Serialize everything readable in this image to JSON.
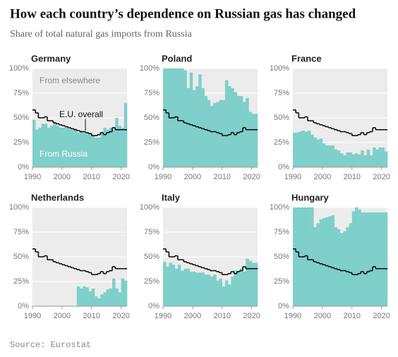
{
  "title": "How each country’s dependence on Russian gas has changed",
  "subtitle": "Share of total natural gas imports from Russia",
  "source": "Source: Eurostat",
  "chart_data": [
    {
      "type": "step-area",
      "title": "Germany",
      "x": [
        1990,
        1991,
        1992,
        1993,
        1994,
        1995,
        1996,
        1997,
        1998,
        1999,
        2000,
        2001,
        2002,
        2003,
        2004,
        2005,
        2006,
        2007,
        2008,
        2009,
        2010,
        2011,
        2012,
        2013,
        2014,
        2015,
        2016,
        2017,
        2018,
        2019,
        2020,
        2021
      ],
      "series": [
        {
          "color": "#7fcfcb",
          "values": [
            48,
            38,
            40,
            44,
            44,
            40,
            42,
            45,
            42,
            40,
            40,
            40,
            39,
            38,
            39,
            35,
            37,
            35,
            35,
            35,
            32,
            30,
            30,
            35,
            40,
            38,
            40,
            38,
            50,
            42,
            40,
            65
          ]
        },
        {
          "color": "#111111",
          "values": [
            58,
            55,
            50,
            50,
            51,
            47,
            47,
            45,
            44,
            43,
            42,
            41,
            40,
            39,
            38,
            37,
            36,
            36,
            35,
            34,
            32,
            32,
            33,
            35,
            33,
            35,
            36,
            40,
            38,
            38,
            38,
            38
          ]
        }
      ],
      "annotations": [
        "From elsewhere",
        "E.U. overall",
        "From Russia"
      ],
      "xlim": [
        1990,
        2022
      ],
      "xticks": [
        1990,
        2000,
        2010,
        2020
      ],
      "ylim": [
        0,
        100
      ],
      "yticks": [
        {
          "value": 0,
          "label": "0%"
        },
        {
          "value": 25,
          "label": "25%"
        },
        {
          "value": 50,
          "label": "50%"
        },
        {
          "value": 75,
          "label": "75%"
        },
        {
          "value": 100,
          "label": "100%"
        }
      ],
      "grid": true
    },
    {
      "type": "step-area",
      "title": "Poland",
      "x": [
        1990,
        1991,
        1992,
        1993,
        1994,
        1995,
        1996,
        1997,
        1998,
        1999,
        2000,
        2001,
        2002,
        2003,
        2004,
        2005,
        2006,
        2007,
        2008,
        2009,
        2010,
        2011,
        2012,
        2013,
        2014,
        2015,
        2016,
        2017,
        2018,
        2019,
        2020,
        2021
      ],
      "series": [
        {
          "color": "#7fcfcb",
          "values": [
            100,
            100,
            100,
            100,
            100,
            100,
            100,
            98,
            80,
            96,
            78,
            82,
            94,
            80,
            72,
            68,
            62,
            65,
            66,
            68,
            68,
            88,
            82,
            80,
            76,
            72,
            72,
            66,
            70,
            56,
            54,
            54
          ]
        },
        {
          "color": "#111111",
          "values": [
            58,
            55,
            50,
            50,
            51,
            47,
            47,
            45,
            44,
            43,
            42,
            41,
            40,
            39,
            38,
            37,
            36,
            36,
            35,
            34,
            32,
            32,
            33,
            35,
            33,
            35,
            36,
            40,
            38,
            38,
            38,
            38
          ]
        }
      ],
      "xlim": [
        1990,
        2022
      ],
      "xticks": [
        1990,
        2000,
        2010,
        2020
      ],
      "ylim": [
        0,
        100
      ],
      "yticks": [
        {
          "value": 0,
          "label": "0%"
        },
        {
          "value": 25,
          "label": "25%"
        },
        {
          "value": 50,
          "label": "50%"
        },
        {
          "value": 75,
          "label": "75%"
        },
        {
          "value": 100,
          "label": "100%"
        }
      ],
      "grid": true
    },
    {
      "type": "step-area",
      "title": "France",
      "x": [
        1990,
        1991,
        1992,
        1993,
        1994,
        1995,
        1996,
        1997,
        1998,
        1999,
        2000,
        2001,
        2002,
        2003,
        2004,
        2005,
        2006,
        2007,
        2008,
        2009,
        2010,
        2011,
        2012,
        2013,
        2014,
        2015,
        2016,
        2017,
        2018,
        2019,
        2020,
        2021
      ],
      "series": [
        {
          "color": "#7fcfcb",
          "values": [
            35,
            35,
            36,
            37,
            36,
            37,
            33,
            30,
            28,
            29,
            24,
            22,
            22,
            22,
            18,
            17,
            14,
            12,
            15,
            15,
            13,
            14,
            13,
            17,
            12,
            18,
            12,
            20,
            18,
            20,
            20,
            16
          ]
        },
        {
          "color": "#111111",
          "values": [
            58,
            55,
            50,
            50,
            51,
            47,
            47,
            45,
            44,
            43,
            42,
            41,
            40,
            39,
            38,
            37,
            36,
            36,
            35,
            34,
            32,
            32,
            33,
            35,
            33,
            35,
            36,
            40,
            38,
            38,
            38,
            38
          ]
        }
      ],
      "xlim": [
        1990,
        2022
      ],
      "xticks": [
        1990,
        2000,
        2010,
        2020
      ],
      "ylim": [
        0,
        100
      ],
      "yticks": [
        {
          "value": 0,
          "label": "0%"
        },
        {
          "value": 25,
          "label": "25%"
        },
        {
          "value": 50,
          "label": "50%"
        },
        {
          "value": 75,
          "label": "75%"
        },
        {
          "value": 100,
          "label": "100%"
        }
      ],
      "grid": true
    },
    {
      "type": "step-area",
      "title": "Netherlands",
      "x": [
        1990,
        1991,
        1992,
        1993,
        1994,
        1995,
        1996,
        1997,
        1998,
        1999,
        2000,
        2001,
        2002,
        2003,
        2004,
        2005,
        2006,
        2007,
        2008,
        2009,
        2010,
        2011,
        2012,
        2013,
        2014,
        2015,
        2016,
        2017,
        2018,
        2019,
        2020,
        2021
      ],
      "series": [
        {
          "color": "#7fcfcb",
          "values": [
            null,
            null,
            null,
            null,
            null,
            null,
            null,
            null,
            null,
            null,
            null,
            null,
            null,
            null,
            null,
            20,
            18,
            20,
            19,
            15,
            18,
            10,
            8,
            12,
            14,
            17,
            18,
            28,
            18,
            14,
            28,
            26
          ]
        },
        {
          "color": "#111111",
          "values": [
            58,
            55,
            50,
            50,
            51,
            47,
            47,
            45,
            44,
            43,
            42,
            41,
            40,
            39,
            38,
            37,
            36,
            36,
            35,
            34,
            32,
            32,
            33,
            35,
            33,
            35,
            36,
            40,
            38,
            38,
            38,
            38
          ]
        }
      ],
      "xlim": [
        1990,
        2022
      ],
      "xticks": [
        1990,
        2000,
        2010,
        2020
      ],
      "ylim": [
        0,
        100
      ],
      "yticks": [
        {
          "value": 0,
          "label": "0%"
        },
        {
          "value": 25,
          "label": "25%"
        },
        {
          "value": 50,
          "label": "50%"
        },
        {
          "value": 75,
          "label": "75%"
        },
        {
          "value": 100,
          "label": "100%"
        }
      ],
      "grid": true
    },
    {
      "type": "step-area",
      "title": "Italy",
      "x": [
        1990,
        1991,
        1992,
        1993,
        1994,
        1995,
        1996,
        1997,
        1998,
        1999,
        2000,
        2001,
        2002,
        2003,
        2004,
        2005,
        2006,
        2007,
        2008,
        2009,
        2010,
        2011,
        2012,
        2013,
        2014,
        2015,
        2016,
        2017,
        2018,
        2019,
        2020,
        2021
      ],
      "series": [
        {
          "color": "#7fcfcb",
          "values": [
            45,
            40,
            44,
            42,
            38,
            42,
            36,
            38,
            38,
            35,
            35,
            34,
            34,
            34,
            32,
            32,
            30,
            32,
            26,
            28,
            20,
            26,
            22,
            30,
            36,
            36,
            38,
            35,
            48,
            46,
            44,
            44
          ]
        },
        {
          "color": "#111111",
          "values": [
            58,
            55,
            50,
            50,
            51,
            47,
            47,
            45,
            44,
            43,
            42,
            41,
            40,
            39,
            38,
            37,
            36,
            36,
            35,
            34,
            32,
            32,
            33,
            35,
            33,
            35,
            36,
            40,
            38,
            38,
            38,
            38
          ]
        }
      ],
      "xlim": [
        1990,
        2022
      ],
      "xticks": [
        1990,
        2000,
        2010,
        2020
      ],
      "ylim": [
        0,
        100
      ],
      "yticks": [
        {
          "value": 0,
          "label": "0%"
        },
        {
          "value": 25,
          "label": "25%"
        },
        {
          "value": 50,
          "label": "50%"
        },
        {
          "value": 75,
          "label": "75%"
        },
        {
          "value": 100,
          "label": "100%"
        }
      ],
      "grid": true
    },
    {
      "type": "step-area",
      "title": "Hungary",
      "x": [
        1990,
        1991,
        1992,
        1993,
        1994,
        1995,
        1996,
        1997,
        1998,
        1999,
        2000,
        2001,
        2002,
        2003,
        2004,
        2005,
        2006,
        2007,
        2008,
        2009,
        2010,
        2011,
        2012,
        2013,
        2014,
        2015,
        2016,
        2017,
        2018,
        2019,
        2020,
        2021
      ],
      "series": [
        {
          "color": "#7fcfcb",
          "values": [
            100,
            100,
            100,
            100,
            100,
            100,
            100,
            80,
            84,
            88,
            89,
            90,
            91,
            92,
            80,
            78,
            74,
            76,
            80,
            84,
            96,
            100,
            98,
            95,
            95,
            95,
            95,
            95,
            95,
            95,
            95,
            95
          ]
        },
        {
          "color": "#111111",
          "values": [
            58,
            55,
            50,
            50,
            51,
            47,
            47,
            45,
            44,
            43,
            42,
            41,
            40,
            39,
            38,
            37,
            36,
            36,
            35,
            34,
            32,
            32,
            33,
            35,
            33,
            35,
            36,
            40,
            38,
            38,
            38,
            38
          ]
        }
      ],
      "xlim": [
        1990,
        2022
      ],
      "xticks": [
        1990,
        2000,
        2010,
        2020
      ],
      "ylim": [
        0,
        100
      ],
      "yticks": [
        {
          "value": 0,
          "label": "0%"
        },
        {
          "value": 25,
          "label": "25%"
        },
        {
          "value": 50,
          "label": "50%"
        },
        {
          "value": 75,
          "label": "75%"
        },
        {
          "value": 100,
          "label": "100%"
        }
      ],
      "grid": true
    }
  ]
}
